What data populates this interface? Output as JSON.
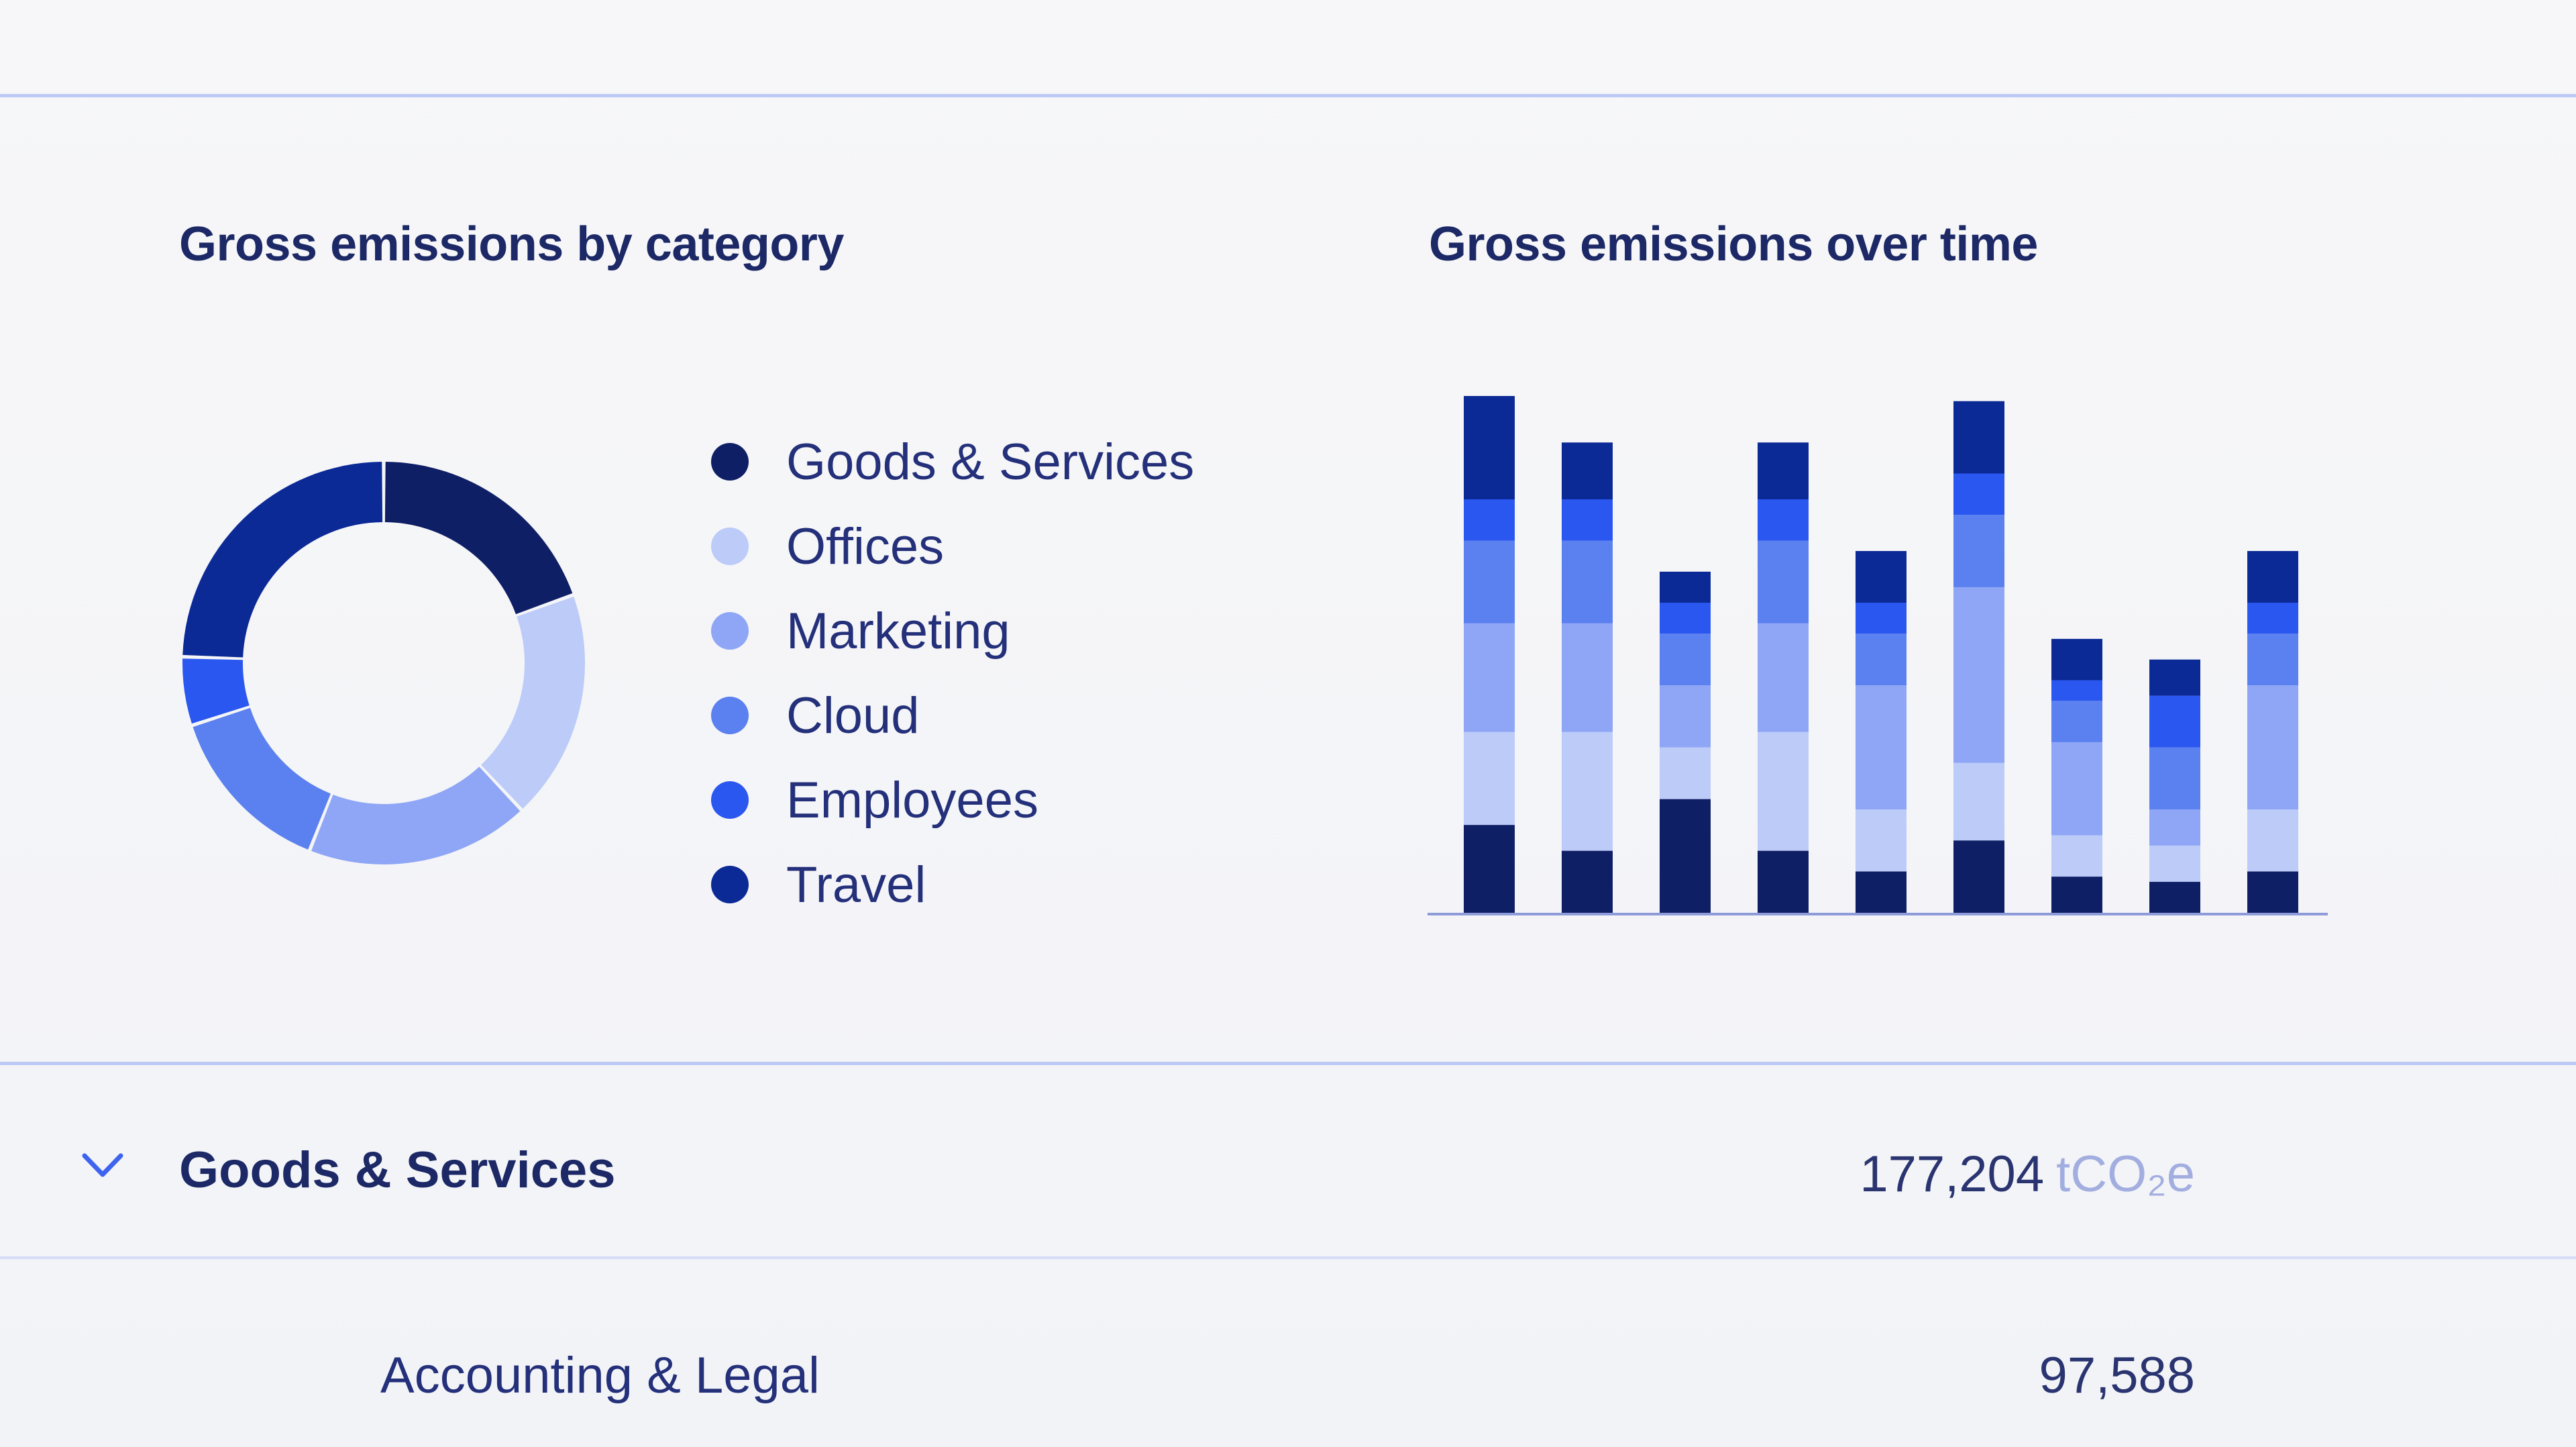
{
  "chart_data": [
    {
      "type": "pie",
      "title": "Gross emissions by category",
      "legend_placement": "right",
      "categories": [
        "Goods & Services",
        "Offices",
        "Marketing",
        "Cloud",
        "Employees",
        "Travel"
      ],
      "values": [
        19.5,
        18.5,
        18,
        14,
        5.5,
        24.5
      ],
      "colors": [
        "#0f1f66",
        "#bccbf8",
        "#8ea6f5",
        "#5b80ef",
        "#2a57f0",
        "#0c2a96"
      ]
    },
    {
      "type": "bar",
      "stacked": true,
      "title": "Gross emissions over time",
      "grid": false,
      "ylim": [
        0,
        100
      ],
      "categories": [
        "",
        "",
        "",
        "",
        "",
        "",
        "",
        "",
        ""
      ],
      "series": [
        {
          "color": "#0f1f66",
          "values": [
            17,
            12,
            22,
            12,
            8,
            14,
            7,
            6,
            8
          ]
        },
        {
          "color": "#bccbf8",
          "values": [
            18,
            23,
            10,
            23,
            12,
            15,
            8,
            7,
            12
          ]
        },
        {
          "color": "#8ea6f5",
          "values": [
            21,
            21,
            12,
            21,
            24,
            34,
            18,
            7,
            24
          ]
        },
        {
          "color": "#5b80ef",
          "values": [
            16,
            16,
            10,
            16,
            10,
            14,
            8,
            12,
            10
          ]
        },
        {
          "color": "#2a57f0",
          "values": [
            8,
            8,
            6,
            8,
            6,
            8,
            4,
            10,
            6
          ]
        },
        {
          "color": "#0c2a96",
          "values": [
            20,
            11,
            6,
            11,
            10,
            14,
            8,
            7,
            10
          ]
        }
      ]
    }
  ],
  "row": {
    "title": "Goods & Services",
    "value": "177,204",
    "unit": "tCO₂e"
  },
  "subrow": {
    "title": "Accounting & Legal",
    "value": "97,588"
  },
  "icons": {
    "chevron": "chevron-down-icon"
  },
  "colors": {
    "divider": "#bcc9f5",
    "chevron": "#3d63f0"
  }
}
